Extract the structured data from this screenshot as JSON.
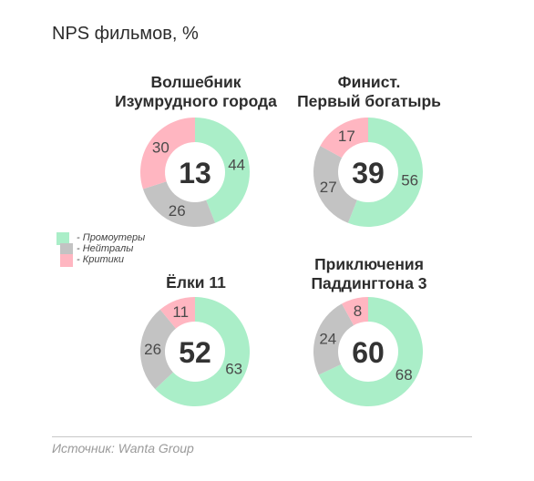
{
  "title": "NPS фильмов, %",
  "source": "Источник: Wanta Group",
  "colors": {
    "promoters": "#aaeec8",
    "neutrals": "#c3c3c3",
    "critics": "#ffb6c1"
  },
  "legend": [
    {
      "key": "promoters",
      "label": "- Промоутеры"
    },
    {
      "key": "neutrals",
      "label": "- Нейтралы"
    },
    {
      "key": "critics",
      "label": "- Критики"
    }
  ],
  "chart_data": [
    {
      "type": "pie",
      "title": "Волшебник\nИзумрудного города",
      "nps": 13,
      "series": [
        {
          "key": "promoters",
          "name": "Промоутеры",
          "value": 44
        },
        {
          "key": "neutrals",
          "name": "Нейтралы",
          "value": 26
        },
        {
          "key": "critics",
          "name": "Критики",
          "value": 30
        }
      ]
    },
    {
      "type": "pie",
      "title": "Финист.\nПервый богатырь",
      "nps": 39,
      "series": [
        {
          "key": "promoters",
          "name": "Промоутеры",
          "value": 56
        },
        {
          "key": "neutrals",
          "name": "Нейтралы",
          "value": 27
        },
        {
          "key": "critics",
          "name": "Критики",
          "value": 17
        }
      ]
    },
    {
      "type": "pie",
      "title": "Ёлки 11",
      "nps": 52,
      "series": [
        {
          "key": "promoters",
          "name": "Промоутеры",
          "value": 63
        },
        {
          "key": "neutrals",
          "name": "Нейтралы",
          "value": 26
        },
        {
          "key": "critics",
          "name": "Критики",
          "value": 11
        }
      ]
    },
    {
      "type": "pie",
      "title": "Приключения\nПаддингтона 3",
      "nps": 60,
      "series": [
        {
          "key": "promoters",
          "name": "Промоутеры",
          "value": 68
        },
        {
          "key": "neutrals",
          "name": "Нейтралы",
          "value": 24
        },
        {
          "key": "critics",
          "name": "Критики",
          "value": 8
        }
      ]
    }
  ]
}
